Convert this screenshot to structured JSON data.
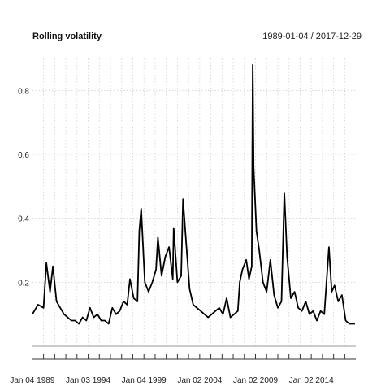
{
  "chart_data": {
    "type": "line",
    "title": "Rolling volatility",
    "subtitle": "1989-01-04 / 2017-12-29",
    "x_ticks": [
      "Jan 04 1989",
      "Jan 03 1994",
      "Jan 04 1999",
      "Jan 02 2004",
      "Jan 02 2009",
      "Jan 02 2014"
    ],
    "y_ticks": [
      0.2,
      0.4,
      0.6,
      0.8
    ],
    "xlim": [
      "1989-01-04",
      "2017-12-29"
    ],
    "ylim": [
      0.0,
      0.9
    ],
    "grid": true,
    "series": [
      {
        "color": "#000000",
        "x": [
          "1989-01",
          "1989-07",
          "1990-01",
          "1990-04",
          "1990-08",
          "1990-11",
          "1991-03",
          "1991-07",
          "1991-11",
          "1992-03",
          "1992-07",
          "1992-11",
          "1993-03",
          "1993-07",
          "1993-11",
          "1994-03",
          "1994-07",
          "1994-11",
          "1995-03",
          "1995-07",
          "1995-11",
          "1996-03",
          "1996-07",
          "1996-11",
          "1997-03",
          "1997-07",
          "1997-10",
          "1998-02",
          "1998-06",
          "1998-08",
          "1998-10",
          "1999-02",
          "1999-06",
          "1999-10",
          "2000-02",
          "2000-04",
          "2000-08",
          "2000-12",
          "2001-04",
          "2001-08",
          "2001-09",
          "2002-01",
          "2002-05",
          "2002-07",
          "2002-10",
          "2003-02",
          "2003-06",
          "2003-10",
          "2004-02",
          "2004-06",
          "2004-10",
          "2005-02",
          "2005-06",
          "2005-10",
          "2006-02",
          "2006-06",
          "2006-10",
          "2007-02",
          "2007-06",
          "2007-08",
          "2007-11",
          "2008-03",
          "2008-06",
          "2008-09",
          "2008-10",
          "2008-11",
          "2009-02",
          "2009-05",
          "2009-09",
          "2010-01",
          "2010-05",
          "2010-09",
          "2011-01",
          "2011-05",
          "2011-08",
          "2011-11",
          "2012-03",
          "2012-07",
          "2012-11",
          "2013-03",
          "2013-07",
          "2013-11",
          "2014-03",
          "2014-07",
          "2014-11",
          "2015-03",
          "2015-08",
          "2015-11",
          "2016-02",
          "2016-06",
          "2016-10",
          "2017-02",
          "2017-06",
          "2017-12"
        ],
        "values": [
          0.1,
          0.13,
          0.12,
          0.26,
          0.17,
          0.25,
          0.14,
          0.12,
          0.1,
          0.09,
          0.08,
          0.08,
          0.07,
          0.09,
          0.08,
          0.12,
          0.09,
          0.1,
          0.08,
          0.08,
          0.07,
          0.12,
          0.1,
          0.11,
          0.14,
          0.13,
          0.21,
          0.15,
          0.14,
          0.36,
          0.43,
          0.2,
          0.17,
          0.2,
          0.24,
          0.34,
          0.22,
          0.28,
          0.31,
          0.21,
          0.37,
          0.2,
          0.22,
          0.46,
          0.34,
          0.18,
          0.13,
          0.12,
          0.11,
          0.1,
          0.09,
          0.1,
          0.11,
          0.12,
          0.1,
          0.15,
          0.09,
          0.1,
          0.11,
          0.2,
          0.24,
          0.27,
          0.21,
          0.25,
          0.88,
          0.56,
          0.36,
          0.3,
          0.2,
          0.17,
          0.27,
          0.16,
          0.12,
          0.14,
          0.48,
          0.28,
          0.15,
          0.17,
          0.12,
          0.11,
          0.14,
          0.1,
          0.11,
          0.08,
          0.11,
          0.1,
          0.31,
          0.17,
          0.19,
          0.14,
          0.16,
          0.08,
          0.07,
          0.07
        ]
      }
    ]
  }
}
